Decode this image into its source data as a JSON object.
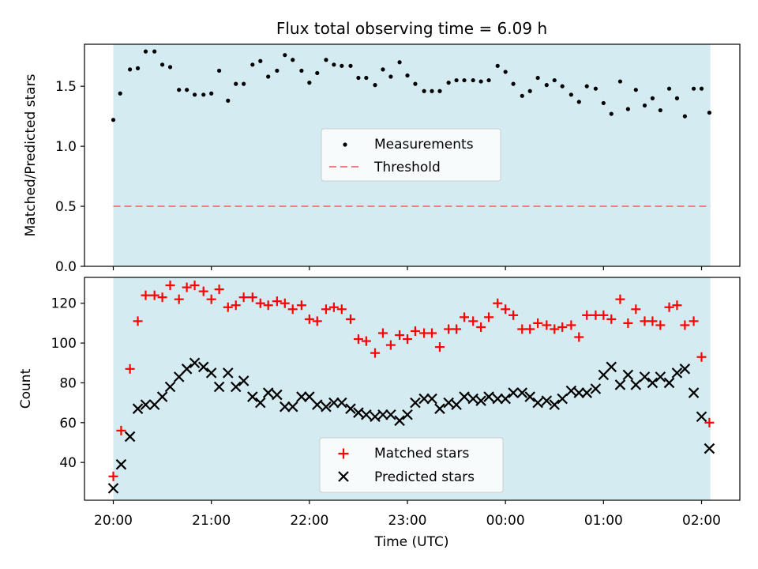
{
  "chart_data": [
    {
      "type": "scatter",
      "title": "Flux total observing time = 6.09 h",
      "xlabel": "",
      "ylabel": "Matched/Predicted stars",
      "ylim": [
        0,
        1.85
      ],
      "yticks": [
        0.0,
        0.5,
        1.0,
        1.5
      ],
      "ytick_labels": [
        "0.0",
        "0.5",
        "1.0",
        "1.5"
      ],
      "shaded_span_hours": [
        20.0,
        26.09
      ],
      "shade_color": "#d4ebf1",
      "threshold": 0.5,
      "legend_position": "center",
      "series": [
        {
          "name": "Measurements",
          "color": "#000000",
          "marker": "dot",
          "x": [
            20.0,
            20.07,
            20.17,
            20.25,
            20.33,
            20.42,
            20.5,
            20.58,
            20.67,
            20.75,
            20.83,
            20.92,
            21.0,
            21.08,
            21.17,
            21.25,
            21.33,
            21.42,
            21.5,
            21.58,
            21.67,
            21.75,
            21.83,
            21.92,
            22.0,
            22.08,
            22.17,
            22.25,
            22.33,
            22.42,
            22.5,
            22.58,
            22.67,
            22.75,
            22.83,
            22.92,
            23.0,
            23.08,
            23.17,
            23.25,
            23.33,
            23.42,
            23.5,
            23.58,
            23.67,
            23.75,
            23.83,
            23.92,
            24.0,
            24.08,
            24.17,
            24.25,
            24.33,
            24.42,
            24.5,
            24.58,
            24.67,
            24.75,
            24.83,
            24.92,
            25.0,
            25.08,
            25.17,
            25.25,
            25.33,
            25.42,
            25.5,
            25.58,
            25.67,
            25.75,
            25.83,
            25.92,
            26.0,
            26.08
          ],
          "y": [
            1.22,
            1.44,
            1.64,
            1.65,
            1.79,
            1.79,
            1.68,
            1.66,
            1.47,
            1.47,
            1.43,
            1.43,
            1.44,
            1.63,
            1.38,
            1.52,
            1.52,
            1.68,
            1.71,
            1.58,
            1.63,
            1.76,
            1.72,
            1.63,
            1.53,
            1.61,
            1.72,
            1.68,
            1.67,
            1.67,
            1.57,
            1.57,
            1.51,
            1.64,
            1.58,
            1.7,
            1.59,
            1.52,
            1.46,
            1.46,
            1.46,
            1.53,
            1.55,
            1.55,
            1.55,
            1.54,
            1.55,
            1.67,
            1.62,
            1.52,
            1.42,
            1.46,
            1.57,
            1.51,
            1.55,
            1.5,
            1.43,
            1.37,
            1.5,
            1.48,
            1.36,
            1.27,
            1.54,
            1.31,
            1.47,
            1.34,
            1.4,
            1.3,
            1.48,
            1.4,
            1.25,
            1.48,
            1.48,
            1.28
          ]
        },
        {
          "name": "Threshold",
          "color": "#f08080",
          "style": "dashed",
          "x": [
            20.0,
            26.09
          ],
          "y": [
            0.5,
            0.5
          ]
        }
      ]
    },
    {
      "type": "scatter",
      "title": "",
      "xlabel": "Time (UTC)",
      "ylabel": "Count",
      "ylim": [
        21,
        133
      ],
      "yticks": [
        40,
        60,
        80,
        100,
        120
      ],
      "ytick_labels": [
        "40",
        "60",
        "80",
        "100",
        "120"
      ],
      "xticks_hours": [
        20,
        21,
        22,
        23,
        24,
        25,
        26
      ],
      "xtick_labels": [
        "20:00",
        "21:00",
        "22:00",
        "23:00",
        "00:00",
        "01:00",
        "02:00"
      ],
      "shaded_span_hours": [
        20.0,
        26.09
      ],
      "shade_color": "#d4ebf1",
      "legend_position": "lower center",
      "series": [
        {
          "name": "Matched stars",
          "color": "#ff0000",
          "marker": "plus",
          "x": [
            20.0,
            20.08,
            20.17,
            20.25,
            20.33,
            20.42,
            20.5,
            20.58,
            20.67,
            20.75,
            20.83,
            20.92,
            21.0,
            21.08,
            21.17,
            21.25,
            21.33,
            21.42,
            21.5,
            21.58,
            21.67,
            21.75,
            21.83,
            21.92,
            22.0,
            22.08,
            22.17,
            22.25,
            22.33,
            22.42,
            22.5,
            22.58,
            22.67,
            22.75,
            22.83,
            22.92,
            23.0,
            23.08,
            23.17,
            23.25,
            23.33,
            23.42,
            23.5,
            23.58,
            23.67,
            23.75,
            23.83,
            23.92,
            24.0,
            24.08,
            24.17,
            24.25,
            24.33,
            24.42,
            24.5,
            24.58,
            24.67,
            24.75,
            24.83,
            24.92,
            25.0,
            25.08,
            25.17,
            25.25,
            25.33,
            25.42,
            25.5,
            25.58,
            25.67,
            25.75,
            25.83,
            25.92,
            26.0,
            26.08
          ],
          "y": [
            33,
            56,
            87,
            111,
            124,
            124,
            123,
            129,
            122,
            128,
            129,
            126,
            122,
            127,
            118,
            119,
            123,
            123,
            120,
            119,
            121,
            120,
            117,
            119,
            112,
            111,
            117,
            118,
            117,
            112,
            102,
            101,
            95,
            105,
            99,
            104,
            102,
            106,
            105,
            105,
            98,
            107,
            107,
            113,
            111,
            108,
            113,
            120,
            117,
            114,
            107,
            107,
            110,
            109,
            107,
            108,
            109,
            103,
            114,
            114,
            114,
            112,
            122,
            110,
            117,
            111,
            111,
            109,
            118,
            119,
            109,
            111,
            93,
            60
          ]
        },
        {
          "name": "Predicted stars",
          "color": "#000000",
          "marker": "x",
          "x": [
            20.0,
            20.08,
            20.17,
            20.25,
            20.33,
            20.42,
            20.5,
            20.58,
            20.67,
            20.75,
            20.83,
            20.92,
            21.0,
            21.08,
            21.17,
            21.25,
            21.33,
            21.42,
            21.5,
            21.58,
            21.67,
            21.75,
            21.83,
            21.92,
            22.0,
            22.08,
            22.17,
            22.25,
            22.33,
            22.42,
            22.5,
            22.58,
            22.67,
            22.75,
            22.83,
            22.92,
            23.0,
            23.08,
            23.17,
            23.25,
            23.33,
            23.42,
            23.5,
            23.58,
            23.67,
            23.75,
            23.83,
            23.92,
            24.0,
            24.08,
            24.17,
            24.25,
            24.33,
            24.42,
            24.5,
            24.58,
            24.67,
            24.75,
            24.83,
            24.92,
            25.0,
            25.08,
            25.17,
            25.25,
            25.33,
            25.42,
            25.5,
            25.58,
            25.67,
            25.75,
            25.83,
            25.92,
            26.0,
            26.08
          ],
          "y": [
            27,
            39,
            53,
            67,
            69,
            69,
            73,
            78,
            83,
            87,
            90,
            88,
            85,
            78,
            85,
            78,
            81,
            73,
            70,
            75,
            74,
            68,
            68,
            73,
            73,
            69,
            68,
            70,
            70,
            67,
            65,
            64,
            63,
            64,
            64,
            61,
            64,
            70,
            72,
            72,
            67,
            70,
            69,
            73,
            72,
            71,
            73,
            72,
            72,
            75,
            75,
            73,
            70,
            71,
            69,
            72,
            76,
            75,
            75,
            77,
            84,
            88,
            79,
            84,
            79,
            83,
            80,
            83,
            80,
            85,
            87,
            75,
            63,
            47
          ]
        }
      ]
    }
  ]
}
